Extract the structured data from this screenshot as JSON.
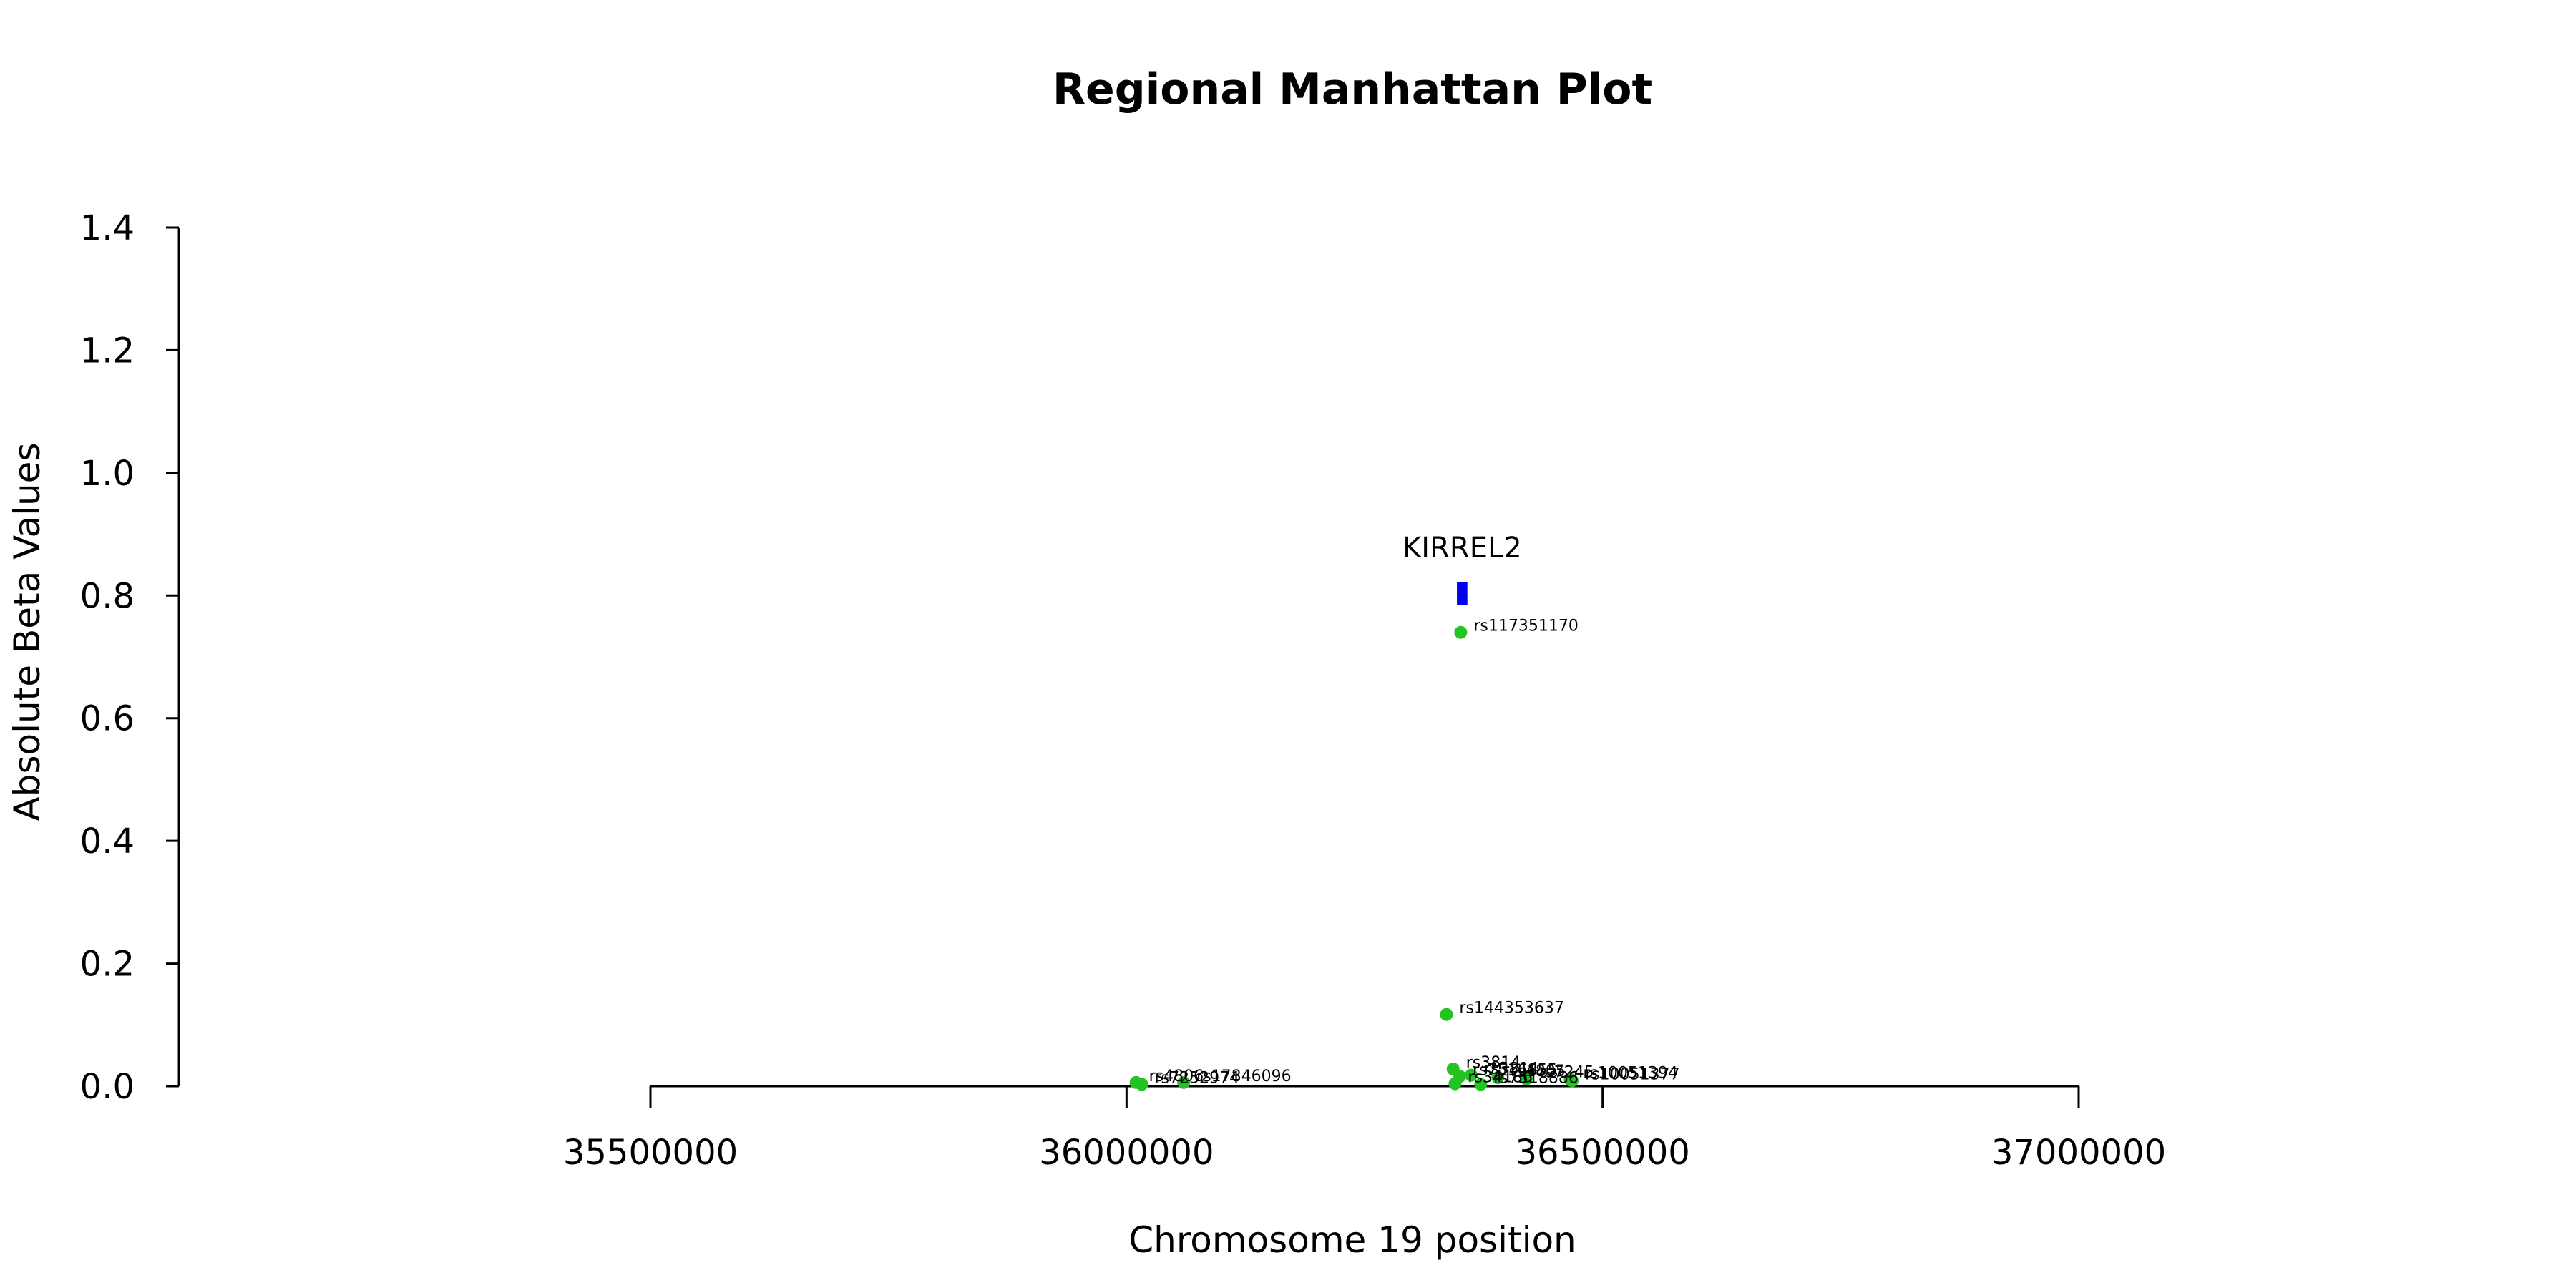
{
  "chart_data": {
    "type": "scatter",
    "title": "Regional Manhattan Plot",
    "xlabel": "Chromosome 19 position",
    "ylabel": "Absolute Beta Values",
    "xlim": [
      35500000,
      37000000
    ],
    "ylim": [
      0,
      1.4
    ],
    "xticks": [
      35500000,
      36000000,
      36500000,
      37000000
    ],
    "yticks": [
      0.0,
      0.2,
      0.4,
      0.6,
      0.8,
      1.0,
      1.2,
      1.4
    ],
    "xtick_labels": [
      "35500000",
      "36000000",
      "36500000",
      "37000000"
    ],
    "ytick_labels": [
      "0.0",
      "0.2",
      "0.4",
      "0.6",
      "0.8",
      "1.0",
      "1.2",
      "1.4"
    ],
    "grid": false,
    "point_color": "#22c322",
    "gene_color": "#0000ee",
    "genes": [
      {
        "name": "KIRREL2",
        "start": 36347000,
        "end": 36358000,
        "y": 0.804
      }
    ],
    "points": [
      {
        "x": 36351000,
        "y": 0.74,
        "label": "rs117351170"
      },
      {
        "x": 36336000,
        "y": 0.117,
        "label": "rs144353637"
      },
      {
        "x": 36343000,
        "y": 0.028,
        "label": "rs3814"
      },
      {
        "x": 36350000,
        "y": 0.016,
        "label": "rs7516855"
      },
      {
        "x": 36362000,
        "y": 0.018,
        "label": "rs3814"
      },
      {
        "x": 36390000,
        "y": 0.014,
        "label": "rs4805"
      },
      {
        "x": 36420000,
        "y": 0.012,
        "label": "rs7245"
      },
      {
        "x": 36466000,
        "y": 0.011,
        "label": "rs10051394"
      },
      {
        "x": 36468000,
        "y": 0.009,
        "label": "rs10051377"
      },
      {
        "x": 36345000,
        "y": 0.004,
        "label": "rs34186"
      },
      {
        "x": 36372000,
        "y": 0.003,
        "label": "rs7518886"
      },
      {
        "x": 36010000,
        "y": 0.006,
        "label": "rs4806"
      },
      {
        "x": 36016000,
        "y": 0.003,
        "label": "rs7252974"
      },
      {
        "x": 36060000,
        "y": 0.006,
        "label": "rs17846096"
      }
    ]
  }
}
